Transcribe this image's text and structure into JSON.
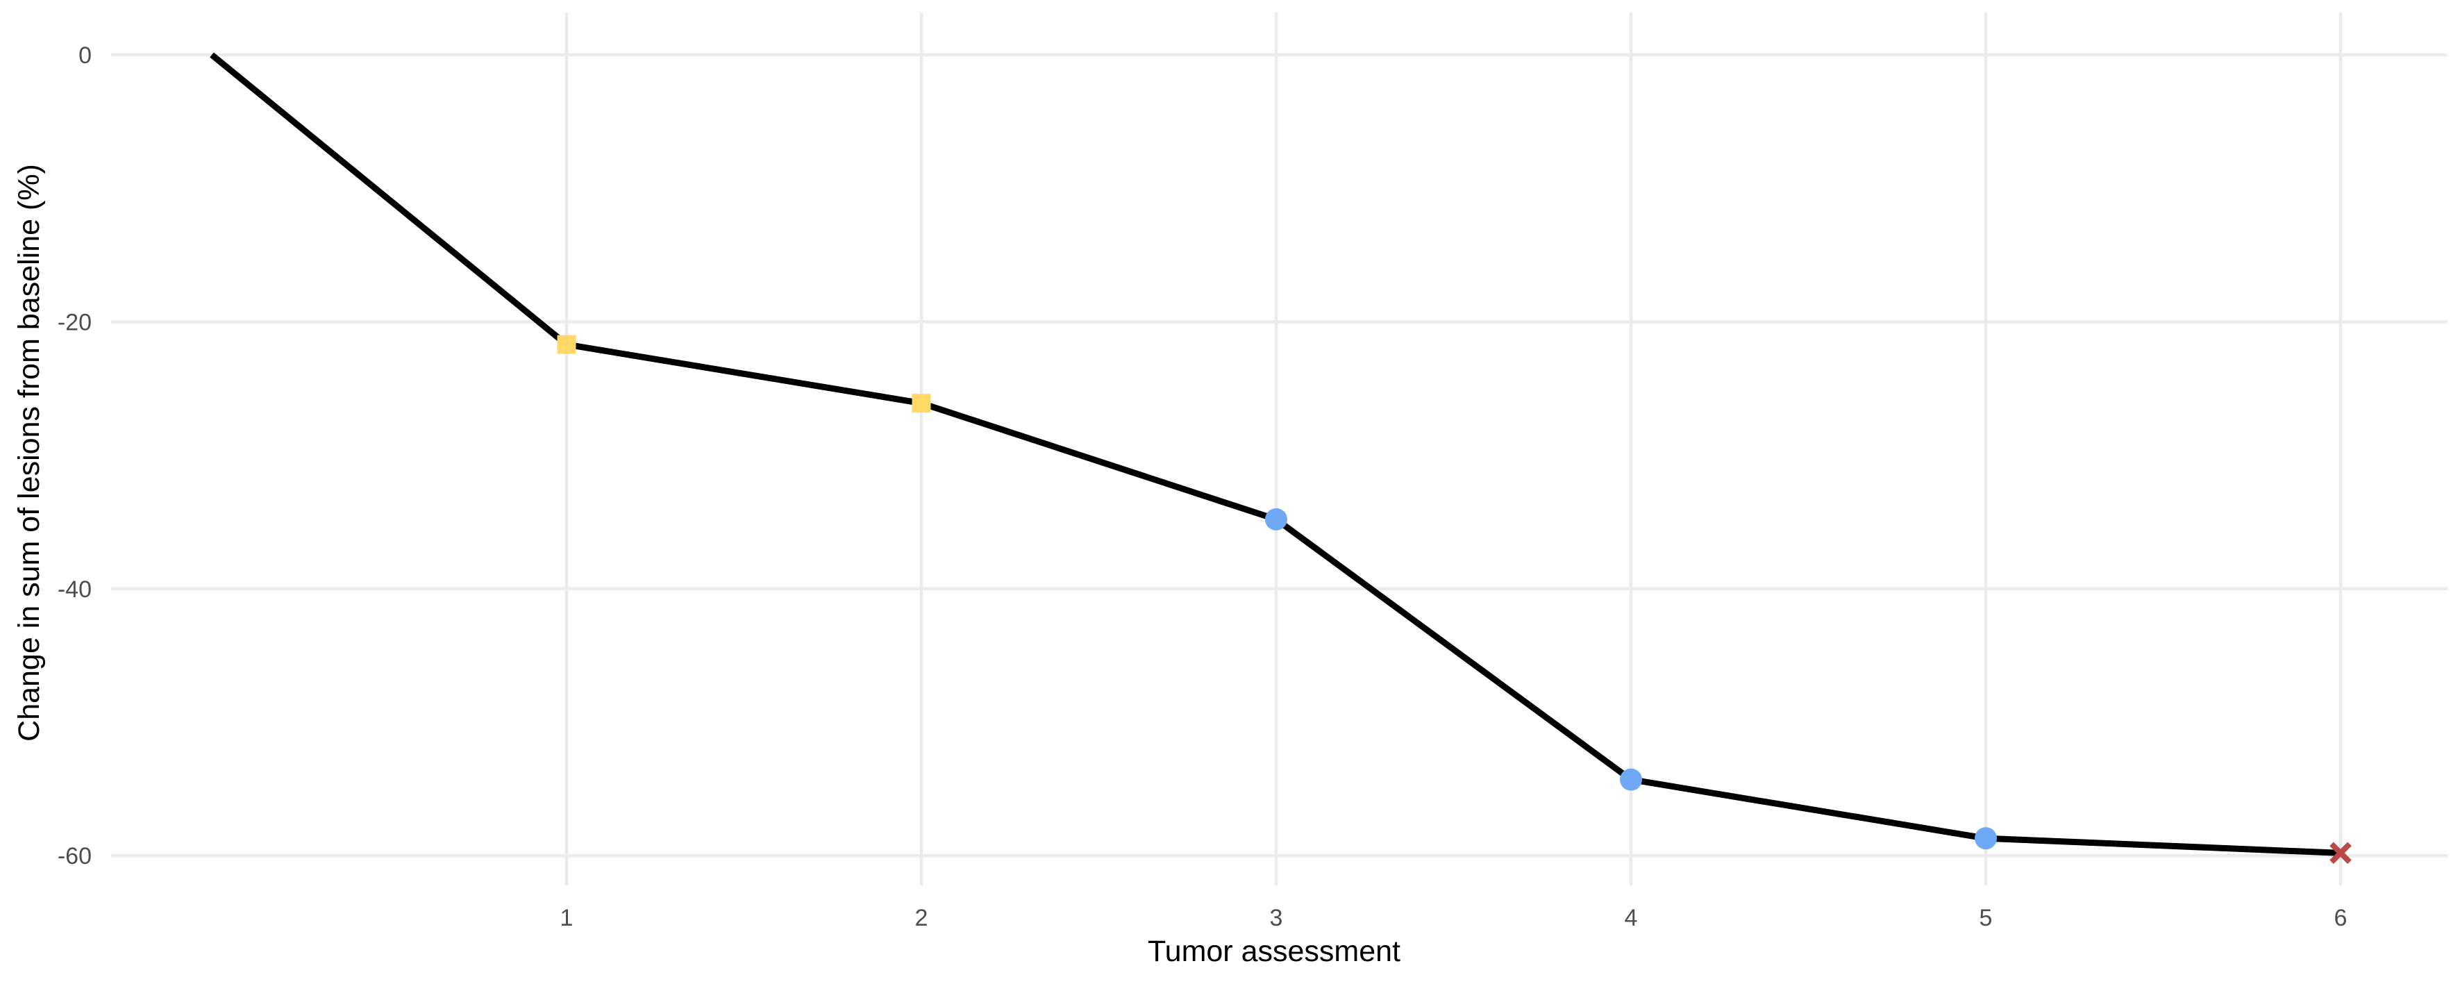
{
  "chart_data": {
    "type": "line",
    "title": "",
    "xlabel": "Tumor assessment",
    "ylabel": "Change in sum of lesions from baseline (%)",
    "x_ticks": [
      1,
      2,
      3,
      4,
      5,
      6
    ],
    "y_ticks": [
      0,
      -20,
      -40,
      -60
    ],
    "xlim": [
      -0.1,
      6.3
    ],
    "ylim": [
      -62,
      3
    ],
    "grid": true,
    "legend": "none",
    "series": [
      {
        "color": "#000000",
        "points": [
          {
            "x": 0,
            "y": 0,
            "marker": "none",
            "color": ""
          },
          {
            "x": 1,
            "y": -21.7,
            "marker": "square",
            "color": "#FFD966"
          },
          {
            "x": 2,
            "y": -26.1,
            "marker": "square",
            "color": "#FFD966"
          },
          {
            "x": 3,
            "y": -34.8,
            "marker": "circle",
            "color": "#6FA8F5"
          },
          {
            "x": 4,
            "y": -54.3,
            "marker": "circle",
            "color": "#6FA8F5"
          },
          {
            "x": 5,
            "y": -58.7,
            "marker": "circle",
            "color": "#6FA8F5"
          },
          {
            "x": 6,
            "y": -59.8,
            "marker": "cross",
            "color": "#B94A48"
          }
        ]
      }
    ]
  }
}
